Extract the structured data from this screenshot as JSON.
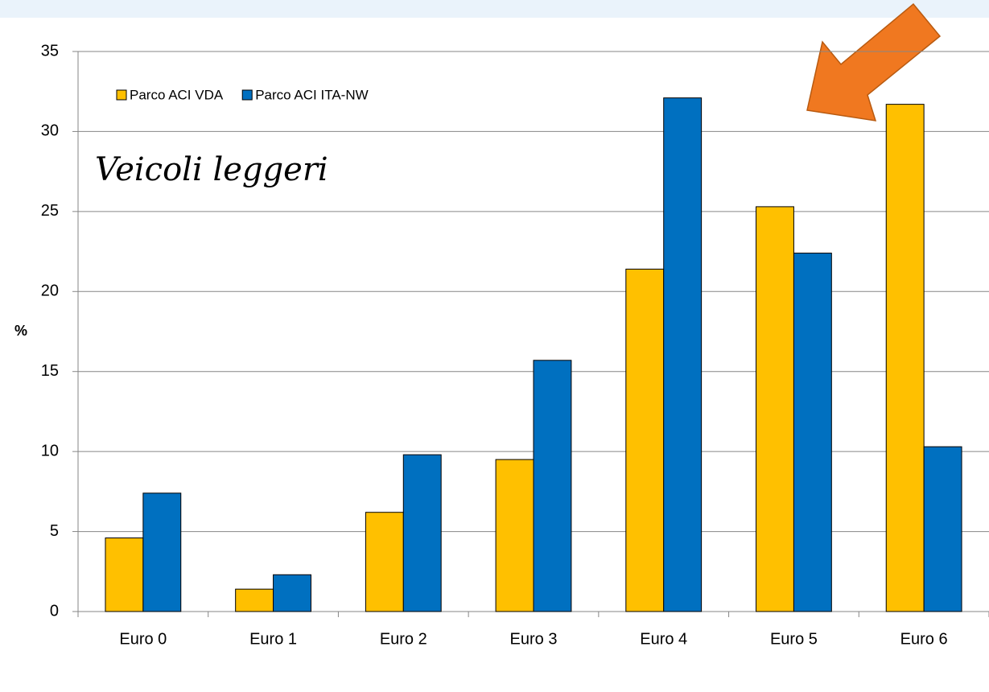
{
  "chart_data": {
    "type": "bar",
    "annotation": "Veicoli leggeri",
    "ylabel": "%",
    "categories": [
      "Euro 0",
      "Euro 1",
      "Euro 2",
      "Euro 3",
      "Euro 4",
      "Euro 5",
      "Euro 6"
    ],
    "series": [
      {
        "name": "Parco ACI VDA",
        "color": "#ffc000",
        "values": [
          4.6,
          1.4,
          6.2,
          9.5,
          21.4,
          25.3,
          31.7
        ]
      },
      {
        "name": "Parco ACI ITA-NW",
        "color": "#0070c0",
        "values": [
          7.4,
          2.3,
          9.8,
          15.7,
          32.1,
          22.4,
          10.3
        ]
      }
    ],
    "ylim": [
      0,
      35
    ],
    "yticks": [
      0,
      5,
      10,
      15,
      20,
      25,
      30,
      35
    ],
    "grid": true,
    "legend": "upper left"
  }
}
